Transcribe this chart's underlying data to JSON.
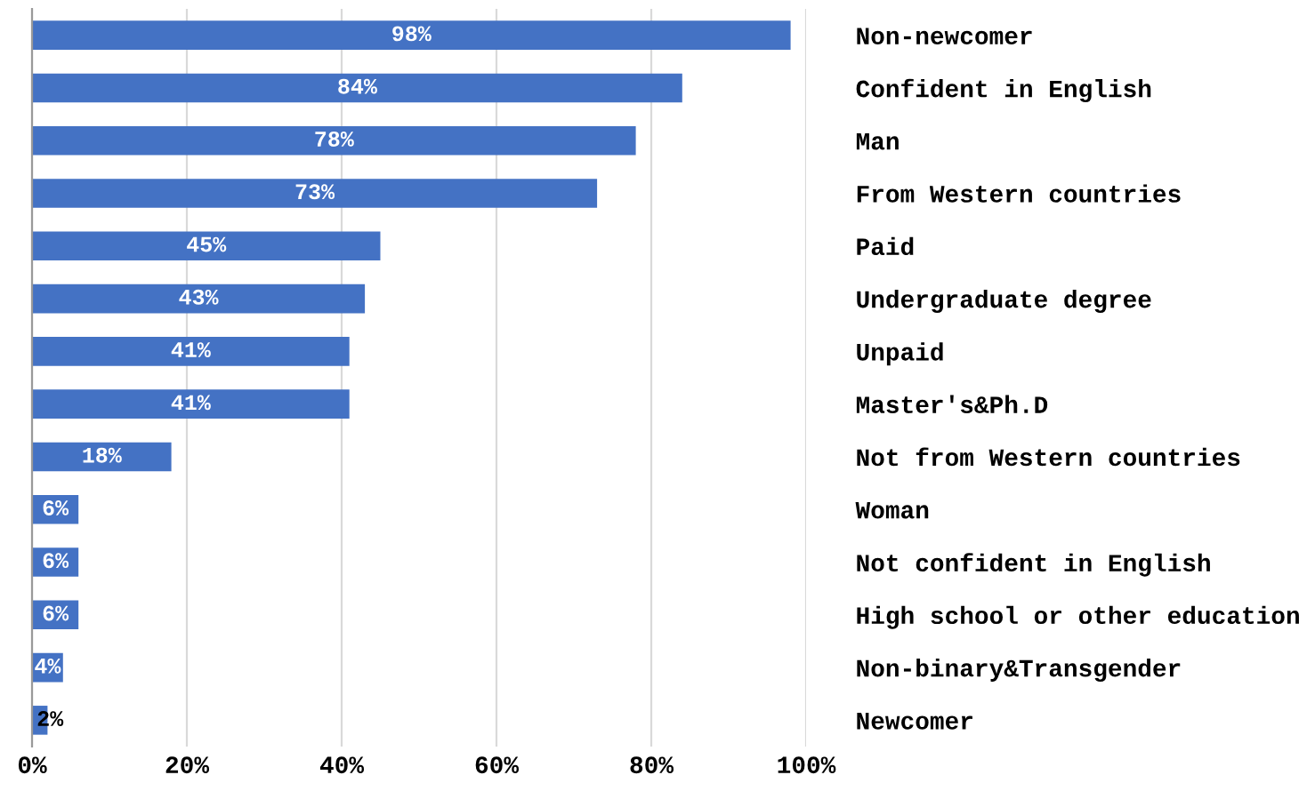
{
  "chart_data": {
    "type": "bar",
    "orientation": "horizontal",
    "categories": [
      "Non-newcomer",
      "Confident in English",
      "Man",
      "From Western countries",
      "Paid",
      "Undergraduate degree",
      "Unpaid",
      "Master's&Ph.D",
      "Not from Western countries",
      "Woman",
      "Not confident in English",
      "High school or other education",
      "Non-binary&Transgender",
      "Newcomer"
    ],
    "values": [
      98,
      84,
      78,
      73,
      45,
      43,
      41,
      41,
      18,
      6,
      6,
      6,
      4,
      2
    ],
    "value_labels": [
      "98%",
      "84%",
      "78%",
      "73%",
      "45%",
      "43%",
      "41%",
      "41%",
      "18%",
      "6%",
      "6%",
      "6%",
      "4%",
      "2%"
    ],
    "color": "#4472c4",
    "xlim": [
      0,
      100
    ],
    "xticks": [
      {
        "value": 0,
        "label": "0%"
      },
      {
        "value": 20,
        "label": "20%"
      },
      {
        "value": 40,
        "label": "40%"
      },
      {
        "value": 60,
        "label": "60%"
      },
      {
        "value": 80,
        "label": "80%"
      },
      {
        "value": 100,
        "label": "100%"
      }
    ],
    "grid": "x",
    "legend": false
  }
}
